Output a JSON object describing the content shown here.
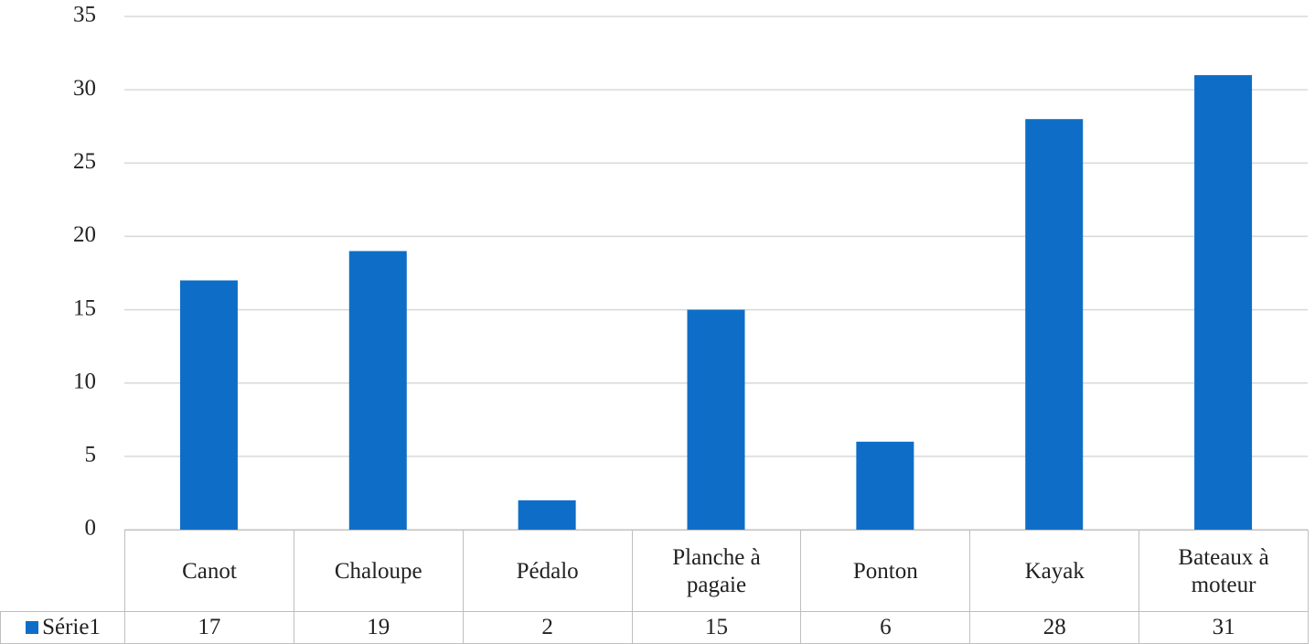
{
  "chart_data": {
    "type": "bar",
    "categories": [
      "Canot",
      "Chaloupe",
      "Pédalo",
      "Planche à pagaie",
      "Ponton",
      "Kayak",
      "Bateaux à moteur"
    ],
    "series": [
      {
        "name": "Série1",
        "color": "#0e6ec7",
        "values": [
          17,
          19,
          2,
          15,
          6,
          28,
          31
        ]
      }
    ],
    "ylim": [
      0,
      35
    ],
    "yticks": [
      0,
      5,
      10,
      15,
      20,
      25,
      30,
      35
    ],
    "grid": true
  }
}
